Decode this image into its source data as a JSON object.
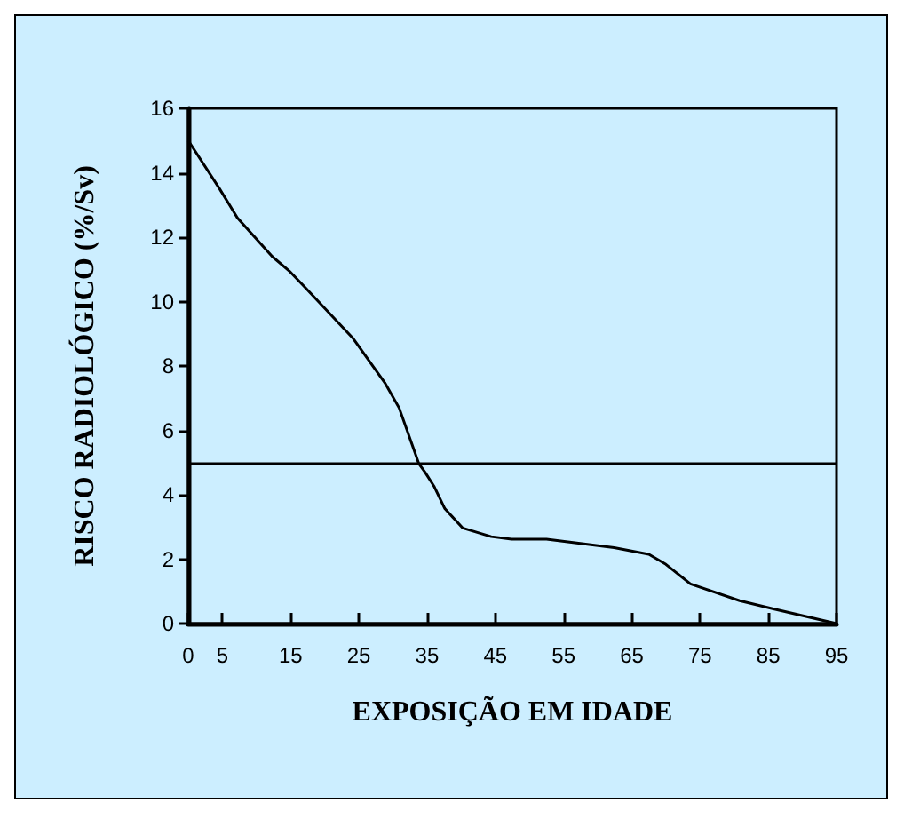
{
  "chart_data": {
    "type": "line",
    "xlabel": "EXPOSIÇÃO EM IDADE",
    "ylabel": "RISCO RADIOLÓGICO (%/Sv)",
    "x": [
      0,
      4.6,
      7.2,
      12.3,
      14.8,
      17.3,
      24.1,
      28.8,
      30.9,
      33.8,
      34.7,
      36,
      37.6,
      40.2,
      44.4,
      47.4,
      52.5,
      62.4,
      67.5,
      70,
      73.6,
      80.8,
      85.9,
      95
    ],
    "series": [
      {
        "color": "#000000",
        "values": [
          15,
          13.5,
          12.6,
          11.4,
          10.95,
          10.4,
          8.87,
          7.48,
          6.7,
          4.96,
          4.7,
          4.27,
          3.57,
          2.97,
          2.7,
          2.62,
          2.62,
          2.36,
          2.15,
          1.84,
          1.23,
          0.71,
          0.45,
          0
        ]
      }
    ],
    "xlim": [
      0,
      95
    ],
    "xticks": [
      0,
      5,
      15,
      25,
      35,
      45,
      55,
      65,
      75,
      85,
      95
    ],
    "ylim": [
      0,
      16
    ],
    "yticks": [
      0,
      2,
      4,
      6,
      8,
      10,
      12,
      14,
      16
    ],
    "ref_lines": [
      {
        "axis": "y",
        "value": 5,
        "color": "#000000"
      }
    ],
    "grid": false,
    "marker": "none",
    "line_style": "solid"
  }
}
